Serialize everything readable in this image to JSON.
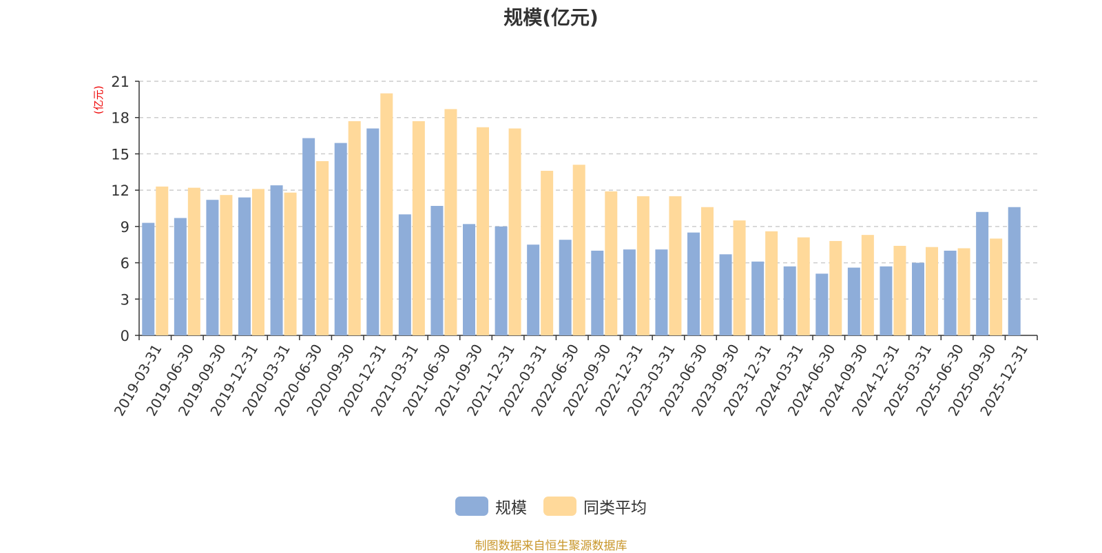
{
  "chart_data": {
    "type": "bar",
    "title": "规模(亿元)",
    "ylabel": "(亿元)",
    "xlabel": "",
    "ylim": [
      0,
      21
    ],
    "yticks": [
      0,
      3,
      6,
      9,
      12,
      15,
      18,
      21
    ],
    "grid": true,
    "legend_position": "bottom-center",
    "categories": [
      "2019-03-31",
      "2019-06-30",
      "2019-09-30",
      "2019-12-31",
      "2020-03-31",
      "2020-06-30",
      "2020-09-30",
      "2020-12-31",
      "2021-03-31",
      "2021-06-30",
      "2021-09-30",
      "2021-12-31",
      "2022-03-31",
      "2022-06-30",
      "2022-09-30",
      "2022-12-31",
      "2023-03-31",
      "2023-06-30",
      "2023-09-30",
      "2023-12-31",
      "2024-03-31",
      "2024-06-30",
      "2024-09-30",
      "2024-12-31",
      "2025-03-31",
      "2025-06-30",
      "2025-09-30",
      "2025-12-31"
    ],
    "series": [
      {
        "name": "规模",
        "color": "#8eadd9",
        "values": [
          9.3,
          9.7,
          11.2,
          11.4,
          12.4,
          16.3,
          15.9,
          17.1,
          10.0,
          10.7,
          9.2,
          9.0,
          7.5,
          7.9,
          7.0,
          7.1,
          7.1,
          8.5,
          6.7,
          6.1,
          5.7,
          5.1,
          5.6,
          5.7,
          6.0,
          7.0,
          10.2,
          10.6
        ]
      },
      {
        "name": "同类平均",
        "color": "#ffd99a",
        "values": [
          12.3,
          12.2,
          11.6,
          12.1,
          11.8,
          14.4,
          17.7,
          20.0,
          17.7,
          18.7,
          17.2,
          17.1,
          13.6,
          14.1,
          11.9,
          11.5,
          11.5,
          10.6,
          9.5,
          8.6,
          8.1,
          7.8,
          8.3,
          7.4,
          7.3,
          7.2,
          8.0,
          null
        ]
      }
    ]
  },
  "footer": "制图数据来自恒生聚源数据库"
}
